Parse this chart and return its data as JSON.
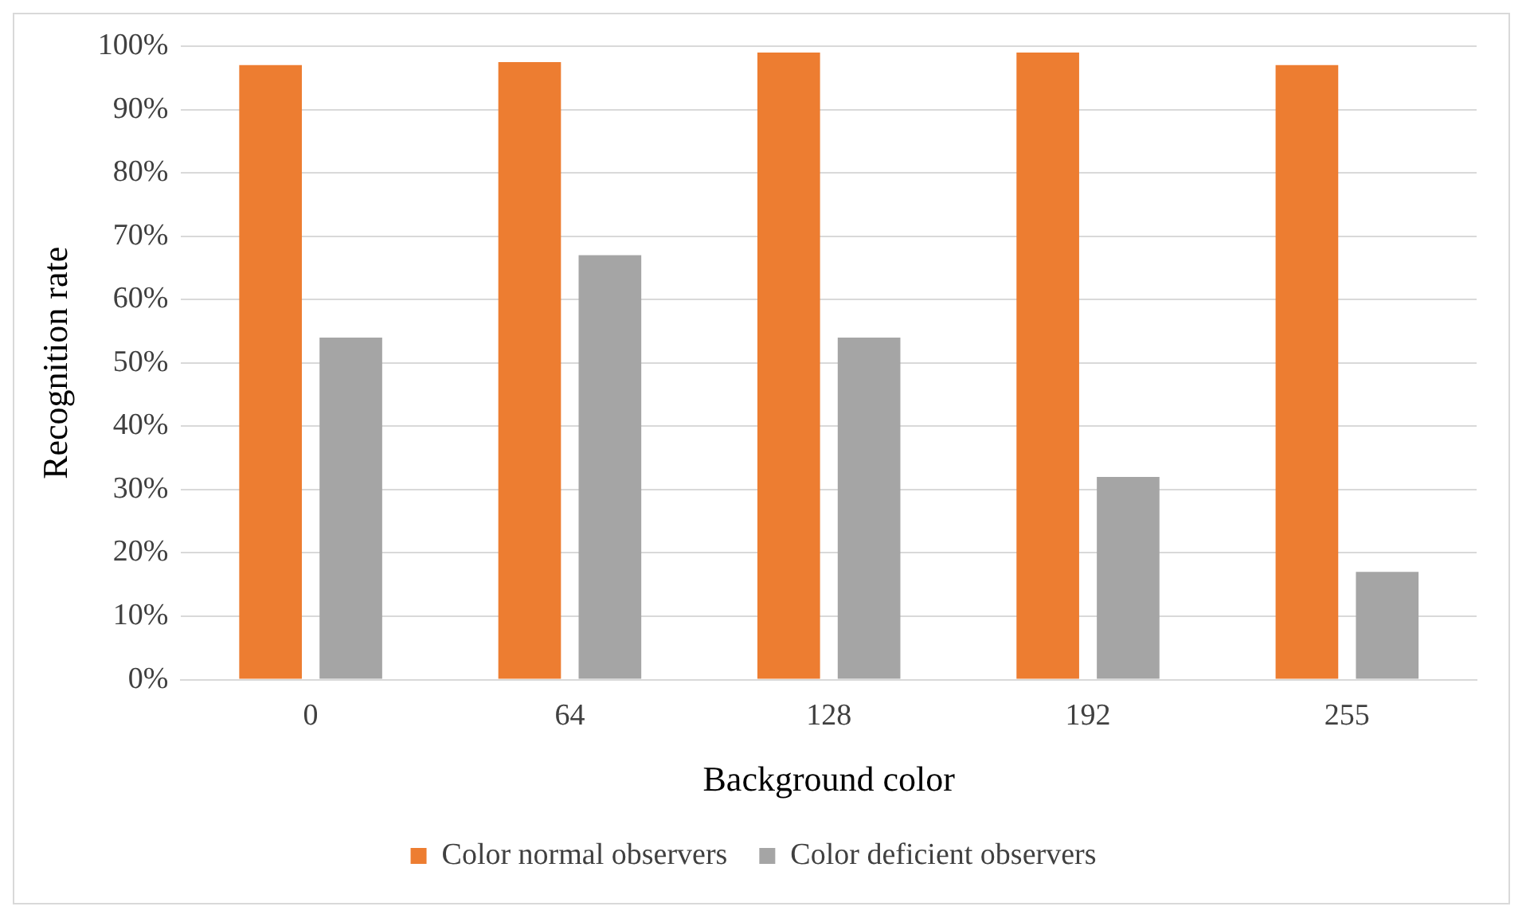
{
  "chart_data": {
    "type": "bar",
    "xlabel": "Background color",
    "ylabel": "Recognition rate",
    "categories": [
      "0",
      "64",
      "128",
      "192",
      "255"
    ],
    "series": [
      {
        "name": "Color normal observers",
        "color": "#ed7d31",
        "values": [
          97,
          97.5,
          99,
          99,
          97
        ]
      },
      {
        "name": "Color deficient observers",
        "color": "#a5a5a5",
        "values": [
          54,
          67,
          54,
          32,
          17
        ]
      }
    ],
    "ylim": [
      0,
      100
    ],
    "yticks": [
      {
        "value": 0,
        "label": "0%"
      },
      {
        "value": 10,
        "label": "10%"
      },
      {
        "value": 20,
        "label": "20%"
      },
      {
        "value": 30,
        "label": "30%"
      },
      {
        "value": 40,
        "label": "40%"
      },
      {
        "value": 50,
        "label": "50%"
      },
      {
        "value": 60,
        "label": "60%"
      },
      {
        "value": 70,
        "label": "70%"
      },
      {
        "value": 80,
        "label": "80%"
      },
      {
        "value": 90,
        "label": "90%"
      },
      {
        "value": 100,
        "label": "100%"
      }
    ],
    "grid": "y",
    "legend": "bottom"
  }
}
